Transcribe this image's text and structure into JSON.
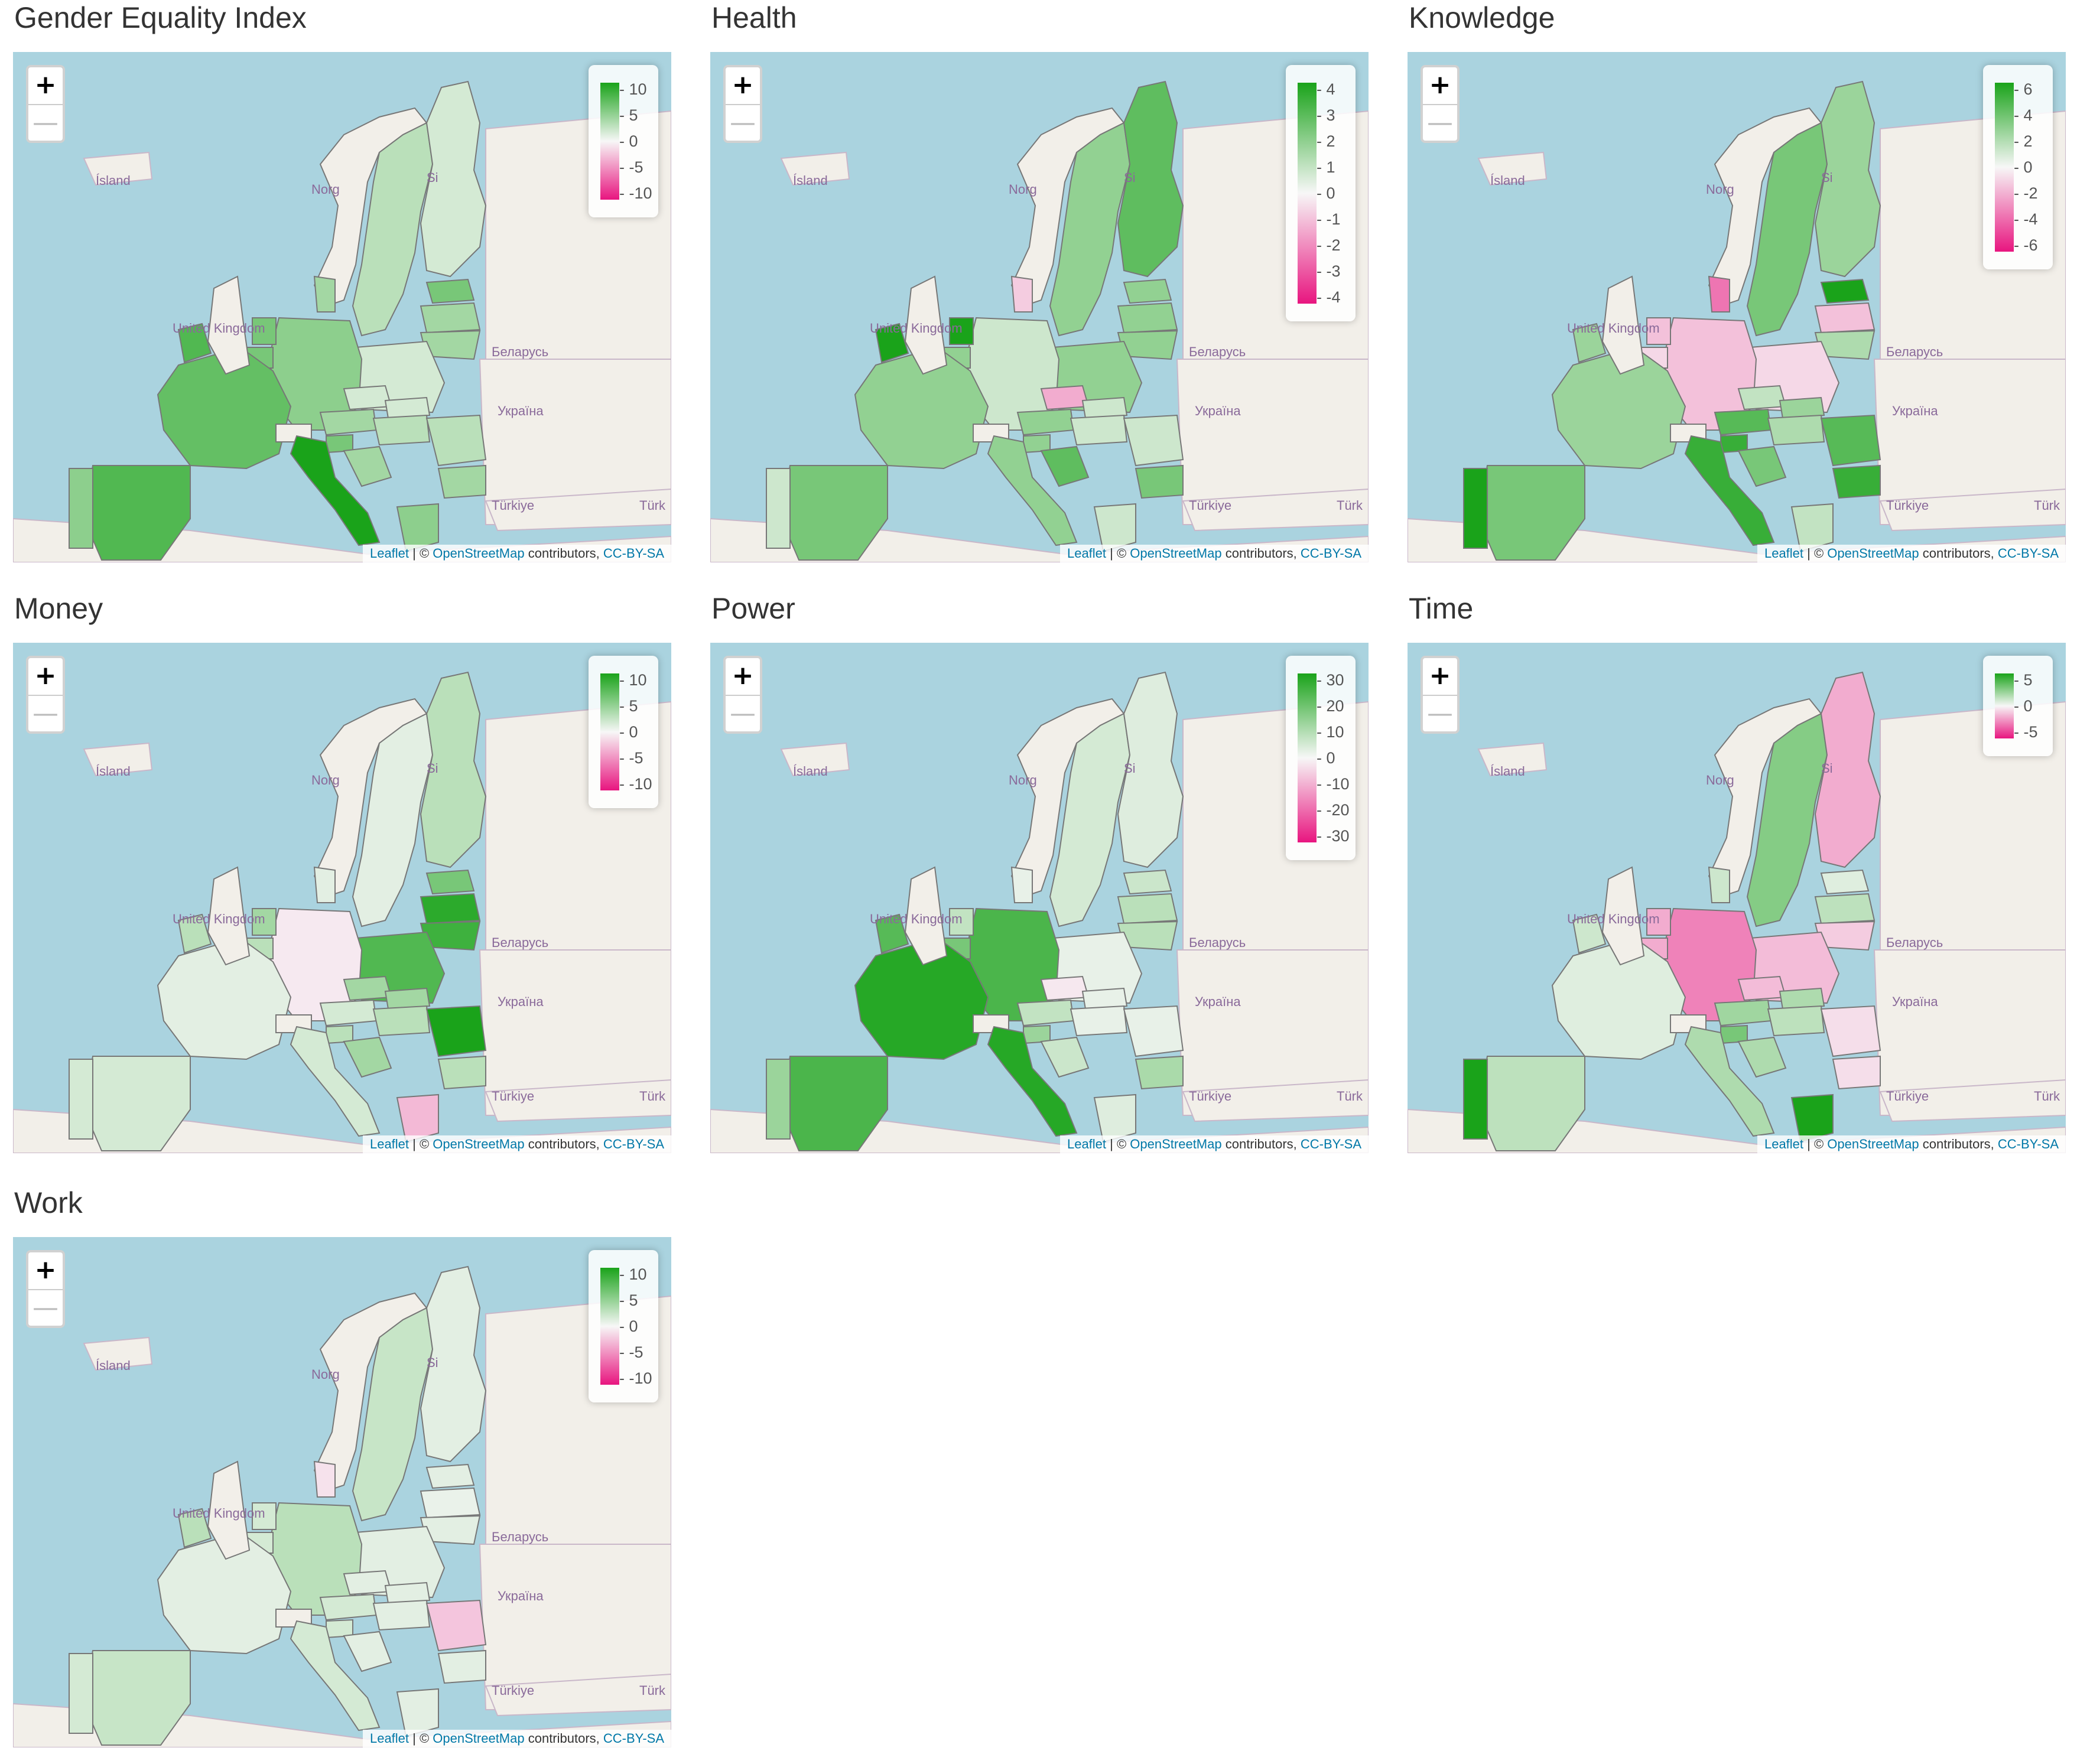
{
  "colors": {
    "water": "#aad3df",
    "land": "#f2efe9",
    "border": "#c9b7c9",
    "scale_top": "#1aa31a",
    "scale_mid": "#f7f7f7",
    "scale_bottom": "#e8157f"
  },
  "map_labels": {
    "iceland": "Ísland",
    "norway": "Norg",
    "sweden": "Si",
    "uk": "United Kingdom",
    "belarus": "Беларусь",
    "ukraine": "Україна",
    "turkey": "Türkiye",
    "turkey_right": "Türk"
  },
  "zoom": {
    "in": "+",
    "out": "—"
  },
  "attribution": {
    "leaflet": "Leaflet",
    "sep": " | © ",
    "osm": "OpenStreetMap",
    "contrib": " contributors, ",
    "license": "CC-BY-SA"
  },
  "panels": [
    {
      "title": "Gender Equality Index",
      "legend_ticks": [
        "10",
        "5",
        "0",
        "-5",
        "-10"
      ],
      "range": 10,
      "countries": {
        "ES": 7,
        "PT": 4,
        "FR": 6,
        "IE": 7,
        "GB": 0,
        "BE": 5,
        "NL": 5,
        "DE": 4,
        "DK": 3,
        "NO": 0,
        "SE": 2,
        "FI": 1,
        "EE": 5,
        "LV": 3,
        "LT": 3,
        "PL": 1,
        "CZ": 1,
        "SK": 1,
        "AT": 3,
        "HU": 2,
        "SI": 5,
        "HR": 3,
        "IT": 10,
        "RO": 2,
        "BG": 3,
        "GR": 4,
        "CH": 0
      }
    },
    {
      "title": "Health",
      "legend_ticks": [
        "4",
        "3",
        "2",
        "1",
        "0",
        "-1",
        "-2",
        "-3",
        "-4"
      ],
      "range": 4,
      "countries": {
        "ES": 2,
        "PT": 0.5,
        "FR": 1.5,
        "IE": 4,
        "GB": 0,
        "BE": 1.5,
        "NL": 4,
        "DE": 0.5,
        "DK": -0.5,
        "NO": 0,
        "SE": 1.5,
        "FI": 2.5,
        "EE": 1.5,
        "LV": 1.5,
        "LT": 1.5,
        "PL": 1.5,
        "CZ": -1,
        "SK": 0.5,
        "AT": 1.5,
        "HU": 0.5,
        "SI": 1.5,
        "HR": 2.5,
        "IT": 1.5,
        "RO": 0.5,
        "BG": 2,
        "GR": 0.5,
        "CH": 0
      }
    },
    {
      "title": "Knowledge",
      "legend_ticks": [
        "6",
        "4",
        "2",
        "0",
        "-2",
        "-4",
        "-6"
      ],
      "range": 6,
      "countries": {
        "ES": 3,
        "PT": 6,
        "FR": 2,
        "IE": 2,
        "GB": 0,
        "BE": -0.5,
        "NL": -1,
        "DE": -1,
        "DK": -3,
        "NO": 0,
        "SE": 3,
        "FI": 2,
        "EE": 6,
        "LV": -1,
        "LT": 1.5,
        "PL": -0.5,
        "CZ": 1,
        "SK": 2,
        "AT": 4,
        "HU": 1.5,
        "SI": 5,
        "HR": 3,
        "IT": 5,
        "RO": 4,
        "BG": 5,
        "GR": 1,
        "CH": 0
      }
    },
    {
      "title": "Money",
      "legend_ticks": [
        "10",
        "5",
        "0",
        "-5",
        "-10"
      ],
      "range": 10,
      "countries": {
        "ES": 1,
        "PT": 1,
        "FR": 0.5,
        "IE": 2,
        "GB": 0,
        "BE": 2,
        "NL": 3,
        "DE": -0.3,
        "DK": 0.5,
        "NO": 0,
        "SE": 0.5,
        "FI": 2,
        "EE": 5,
        "LV": 9,
        "LT": 8,
        "PL": 7,
        "CZ": 3,
        "SK": 3,
        "AT": 1,
        "HU": 2,
        "SI": 2,
        "HR": 3,
        "IT": 1,
        "RO": 10,
        "BG": 2,
        "GR": -2,
        "CH": 0
      }
    },
    {
      "title": "Power",
      "legend_ticks": [
        "30",
        "20",
        "10",
        "0",
        "-10",
        "-20",
        "-30"
      ],
      "range": 30,
      "countries": {
        "ES": 22,
        "PT": 10,
        "FR": 28,
        "IE": 20,
        "GB": 0,
        "BE": 15,
        "NL": 5,
        "DE": 22,
        "DK": 1,
        "NO": 0,
        "SE": 3,
        "FI": 2,
        "EE": 4,
        "LV": 6,
        "LT": 6,
        "PL": 1,
        "CZ": -1,
        "SK": 1,
        "AT": 5,
        "HU": 1,
        "SI": 10,
        "HR": 4,
        "IT": 28,
        "RO": 1,
        "BG": 8,
        "GR": 2,
        "CH": 0
      }
    },
    {
      "title": "Time",
      "legend_ticks": [
        "5",
        "0",
        "-5"
      ],
      "range": 8,
      "countries": {
        "ES": 1.5,
        "PT": 8,
        "FR": 0.5,
        "IE": 1,
        "GB": 0,
        "BE": -2,
        "NL": -2,
        "DE": -3.5,
        "DK": 1,
        "NO": 0,
        "SE": 3.5,
        "FI": -2,
        "EE": 0.5,
        "LV": 1.5,
        "LT": -1,
        "PL": -1.5,
        "CZ": -1.5,
        "SK": 2,
        "AT": 2.5,
        "HU": 1.5,
        "SI": 4,
        "HR": 2,
        "IT": 2,
        "RO": -0.5,
        "BG": -0.5,
        "GR": 8,
        "CH": 0
      }
    },
    {
      "title": "Work",
      "legend_ticks": [
        "10",
        "5",
        "0",
        "-5",
        "-10"
      ],
      "range": 10,
      "countries": {
        "ES": 1.5,
        "PT": 1,
        "FR": 0.5,
        "IE": 2,
        "GB": 0,
        "BE": 1,
        "NL": 1,
        "DE": 2,
        "DK": -0.5,
        "NO": 0,
        "SE": 1.5,
        "FI": 0.5,
        "EE": 0.5,
        "LV": 0.3,
        "LT": 0.5,
        "PL": 0.5,
        "CZ": 0.5,
        "SK": 0.5,
        "AT": 1,
        "HU": 0.5,
        "SI": 1,
        "HR": 0.5,
        "IT": 1,
        "RO": -1.5,
        "BG": 0.5,
        "GR": 0.5,
        "CH": 0
      }
    }
  ]
}
